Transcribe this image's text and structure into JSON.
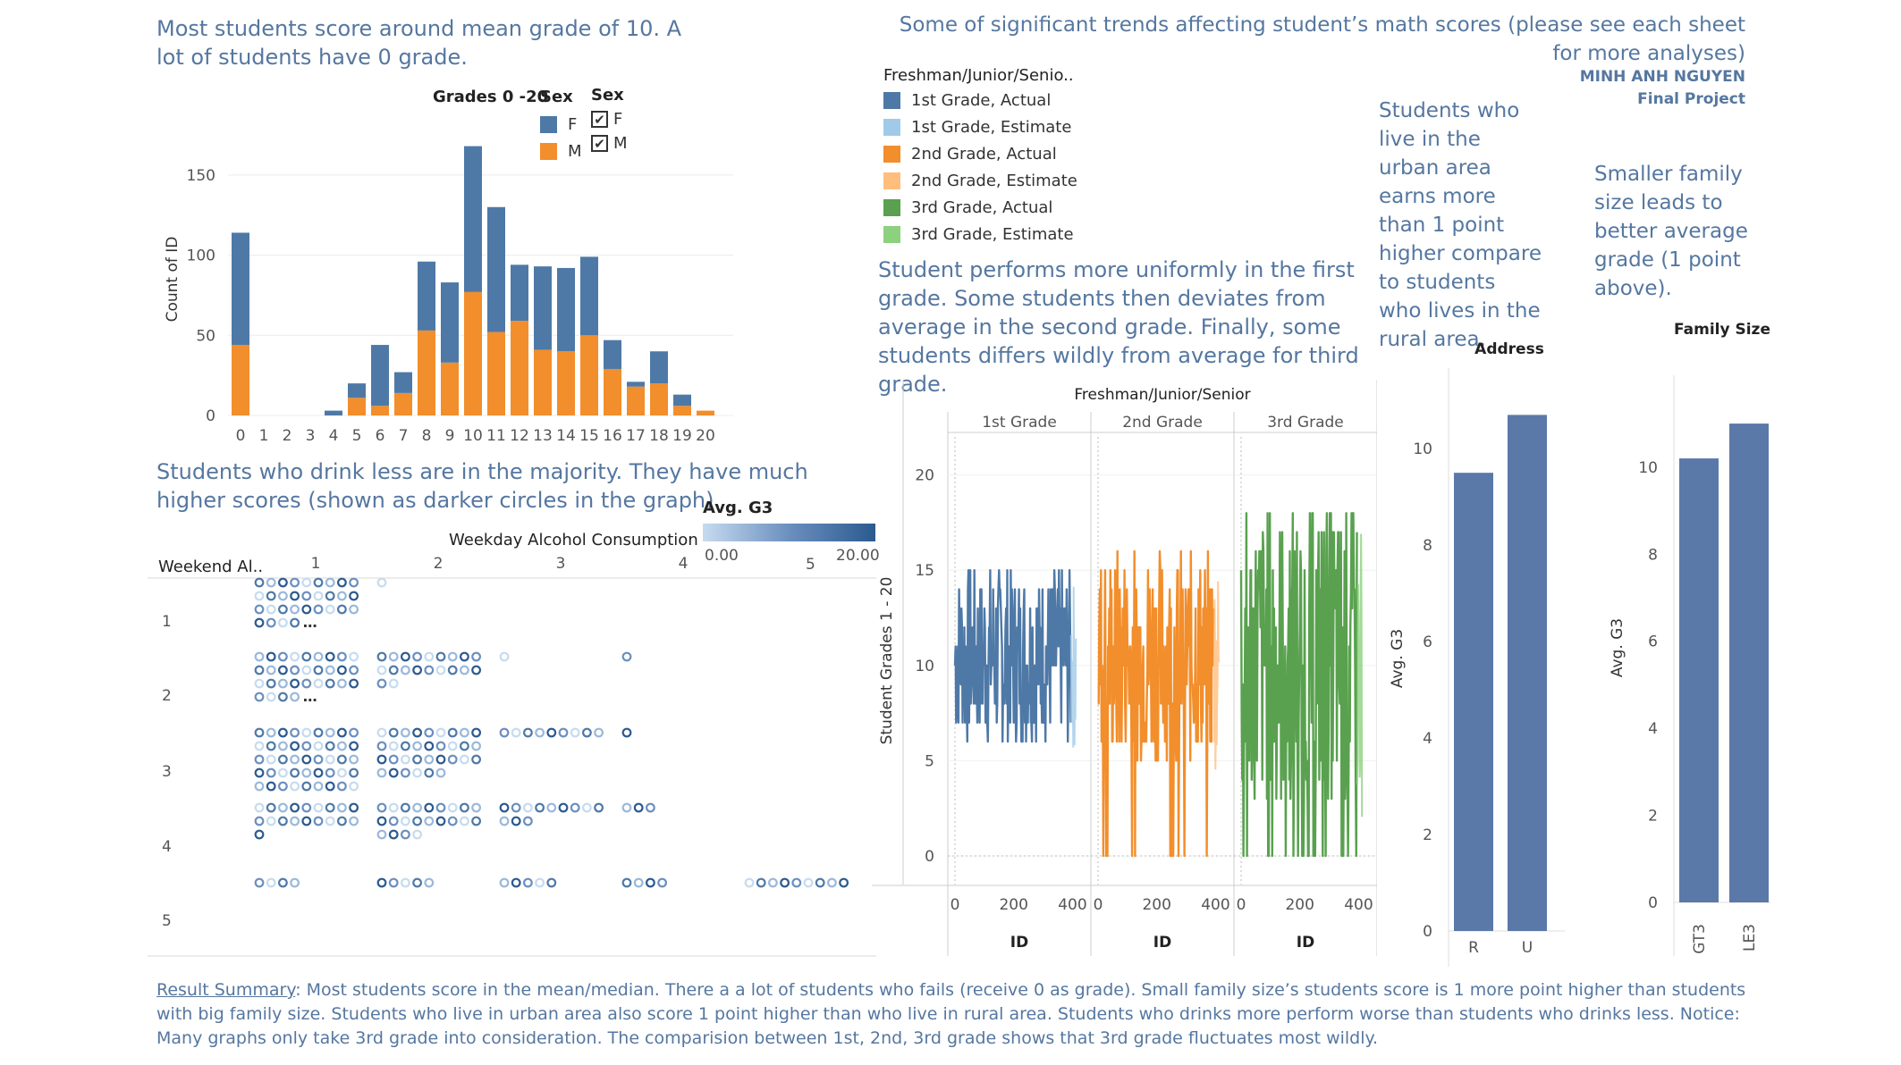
{
  "header": {
    "title": "Some of significant trends affecting student’s math scores (please see each sheet for more analyses)",
    "author": "MINH ANH NGUYEN",
    "project": "Final Project"
  },
  "notes": {
    "histogram": "Most students score around mean grade of 10. A lot of students have 0 grade.",
    "alcohol": "Students who drink less are in the majority. They have much higher scores (shown as darker circles in the graph).",
    "grades": "Student performs more uniformly in the first grade. Some students then deviates from average in the second grade. Finally, some students differs wildly from average for third grade.",
    "address": "Students who live in the urban area earns more than 1 point higher compare to students who lives in the rural area.",
    "family": "Smaller family size leads to better average grade (1 point above)."
  },
  "summary": {
    "link": "Result Summary",
    "text": ": Most students score in the mean/median. There a a lot of students who fails (receive 0 as grade). Small family size’s students score is 1 more point higher than students with big family size. Students who live in urban area also score 1 point higher than who live in rural area. Students who drinks more perform worse than students who drinks less. Notice: Many graphs only take 3rd grade into consideration. The comparision between 1st, 2nd, 3rd grade shows that 3rd grade fluctuates most wildly."
  },
  "colors": {
    "female": "#4e79a7",
    "male": "#f28e2b",
    "third": "#59a14f",
    "text_blue": "#5577a0",
    "bar": "#5a79a8"
  },
  "histogram_legend": {
    "grades_label": "Grades 0 -20",
    "sex_label": "Sex",
    "filter_label": "Sex",
    "items": [
      {
        "label": "F",
        "color": "#4e79a7"
      },
      {
        "label": "M",
        "color": "#f28e2b"
      }
    ],
    "filters": [
      {
        "label": "F",
        "mark": "✔"
      },
      {
        "label": "M",
        "mark": "✔"
      }
    ]
  },
  "grade_legend": {
    "title": "Freshman/Junior/Senio..",
    "items": [
      {
        "label": "1st Grade, Actual",
        "color": "#4e79a7"
      },
      {
        "label": "1st Grade, Estimate",
        "color": "#a0cbe8"
      },
      {
        "label": "2nd Grade, Actual",
        "color": "#f28e2b"
      },
      {
        "label": "2nd Grade, Estimate",
        "color": "#ffbe7d"
      },
      {
        "label": "3rd Grade, Actual",
        "color": "#59a14f"
      },
      {
        "label": "3rd Grade, Estimate",
        "color": "#8cd17d"
      }
    ]
  },
  "chart_data": [
    {
      "type": "bar",
      "stacked": true,
      "categories": [
        "0",
        "1",
        "2",
        "3",
        "4",
        "5",
        "6",
        "7",
        "8",
        "9",
        "10",
        "11",
        "12",
        "13",
        "14",
        "15",
        "16",
        "17",
        "18",
        "19",
        "20"
      ],
      "series": [
        {
          "name": "M",
          "values": [
            44,
            0,
            0,
            0,
            0,
            11,
            6,
            14,
            53,
            33,
            77,
            52,
            59,
            41,
            40,
            50,
            29,
            18,
            20,
            6,
            3
          ]
        },
        {
          "name": "F",
          "values": [
            70,
            0,
            0,
            0,
            3,
            9,
            38,
            13,
            43,
            50,
            91,
            78,
            35,
            52,
            52,
            49,
            18,
            3,
            20,
            7,
            0
          ]
        }
      ],
      "ylabel": "Count of ID",
      "yticks": [
        0,
        50,
        100,
        150
      ],
      "ylim": [
        0,
        170
      ]
    },
    {
      "type": "scatter",
      "title": "Weekday Alcohol Consumption",
      "row_header": "Weekend Al..",
      "columns": [
        "1",
        "2",
        "3",
        "4",
        "5"
      ],
      "rows": [
        "1",
        "2",
        "3",
        "4",
        "5"
      ],
      "color_legend": {
        "title": "Avg. G3",
        "min_label": "0.00",
        "mid_label": "5",
        "max_label": "20.00"
      },
      "cells": [
        {
          "row": 1,
          "col": 1,
          "count": 31,
          "truncated": true
        },
        {
          "row": 1,
          "col": 2,
          "count": 1
        },
        {
          "row": 2,
          "col": 1,
          "count": 31,
          "truncated": true
        },
        {
          "row": 2,
          "col": 2,
          "count": 20
        },
        {
          "row": 2,
          "col": 3,
          "count": 1
        },
        {
          "row": 2,
          "col": 4,
          "count": 1
        },
        {
          "row": 3,
          "col": 1,
          "count": 45
        },
        {
          "row": 3,
          "col": 2,
          "count": 33
        },
        {
          "row": 3,
          "col": 3,
          "count": 9
        },
        {
          "row": 3,
          "col": 4,
          "count": 1
        },
        {
          "row": 4,
          "col": 1,
          "count": 19
        },
        {
          "row": 4,
          "col": 2,
          "count": 22
        },
        {
          "row": 4,
          "col": 3,
          "count": 12
        },
        {
          "row": 4,
          "col": 4,
          "count": 3
        },
        {
          "row": 5,
          "col": 1,
          "count": 4
        },
        {
          "row": 5,
          "col": 2,
          "count": 5
        },
        {
          "row": 5,
          "col": 3,
          "count": 5
        },
        {
          "row": 5,
          "col": 4,
          "count": 4
        },
        {
          "row": 5,
          "col": 5,
          "count": 9
        }
      ]
    },
    {
      "type": "line",
      "title": "Freshman/Junior/Senior",
      "panels": [
        {
          "name": "1st Grade",
          "color": "#4e79a7",
          "estimate_color": "#a0cbe8"
        },
        {
          "name": "2nd Grade",
          "color": "#f28e2b",
          "estimate_color": "#ffbe7d"
        },
        {
          "name": "3rd Grade",
          "color": "#59a14f",
          "estimate_color": "#8cd17d"
        }
      ],
      "xlabel": "ID",
      "ylabel": "Student Grades 1 - 20",
      "xticks": [
        0,
        200,
        400
      ],
      "yticks": [
        0,
        5,
        10,
        15,
        20
      ],
      "xlim": [
        0,
        420
      ],
      "ylim": [
        -1.5,
        22
      ]
    },
    {
      "type": "bar",
      "title": "Address",
      "categories": [
        "R",
        "U"
      ],
      "values": [
        9.5,
        10.7
      ],
      "ylabel": "Avg. G3",
      "yticks": [
        0,
        2,
        4,
        6,
        8,
        10
      ],
      "ylim": [
        0,
        11.3
      ]
    },
    {
      "type": "bar",
      "title": "Family Size",
      "categories": [
        "GT3",
        "LE3"
      ],
      "values": [
        10.2,
        11.0
      ],
      "ylabel": "Avg. G3",
      "yticks": [
        0,
        2,
        4,
        6,
        8,
        10
      ],
      "ylim": [
        0,
        11.7
      ]
    }
  ]
}
